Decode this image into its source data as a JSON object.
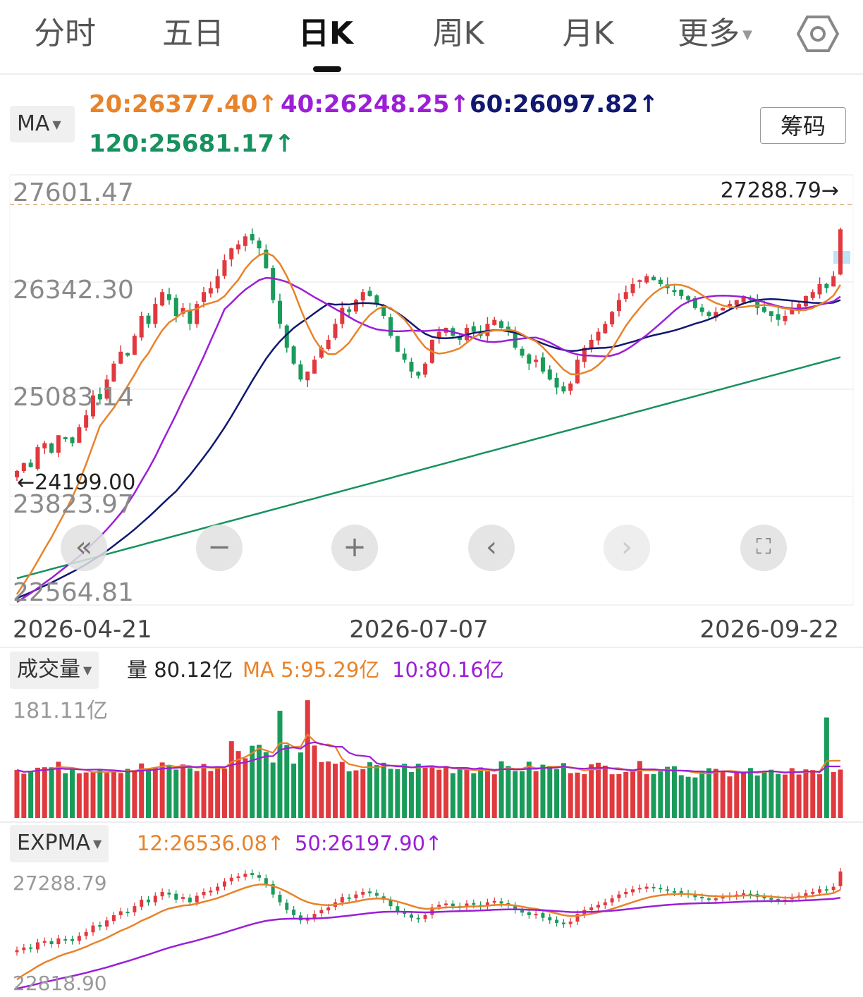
{
  "tabs": [
    {
      "label": "分时"
    },
    {
      "label": "五日"
    },
    {
      "label": "日K",
      "active": true
    },
    {
      "label": "周K"
    },
    {
      "label": "月K"
    },
    {
      "label": "更多"
    }
  ],
  "settings_icon": "gear-icon",
  "ma_panel": {
    "selector_label": "MA",
    "chouma_label": "筹码",
    "lines": [
      {
        "text": "20:26377.40↑",
        "color": "#e8832a"
      },
      {
        "text": "40:26248.25↑",
        "color": "#9b1fd6"
      },
      {
        "text": "60:26097.82↑",
        "color": "#101870"
      },
      {
        "text": "120:25681.17↑",
        "color": "#17915e"
      }
    ],
    "price_labels": [
      "27601.47",
      "26342.30",
      "25083.14",
      "23823.97",
      "22564.81"
    ],
    "max_marker": "27288.79→",
    "min_marker": "←24199.00",
    "dates": [
      "2026-04-21",
      "2026-07-07",
      "2026-09-22"
    ]
  },
  "controls": [
    {
      "name": "zoom-out-fast-button",
      "glyph": "«",
      "enabled": true
    },
    {
      "name": "zoom-out-button",
      "glyph": "−",
      "enabled": true
    },
    {
      "name": "zoom-in-button",
      "glyph": "+",
      "enabled": true
    },
    {
      "name": "scroll-left-button",
      "glyph": "‹",
      "enabled": true
    },
    {
      "name": "scroll-right-button",
      "glyph": "›",
      "enabled": false
    },
    {
      "name": "fullscreen-button",
      "glyph": "⛶",
      "enabled": true
    }
  ],
  "volume_panel": {
    "selector_label": "成交量",
    "volume": "量 80.12亿",
    "ma5": "MA 5:95.29亿",
    "ma10": "10:80.16亿",
    "max_label": "181.11亿"
  },
  "expma_panel": {
    "selector_label": "EXPMA",
    "ema12": "12:26536.08↑",
    "ema50": "50:26197.90↑",
    "top_label": "27288.79",
    "bottom_label": "22818.90"
  },
  "colors": {
    "up": "#e0393e",
    "down": "#199b5a",
    "ma20": "#e8832a",
    "ma40": "#9b1fd6",
    "ma60": "#101870",
    "ma120": "#17915e"
  },
  "chart_data": {
    "type": "candlestick",
    "x_range": [
      "2026-04-21",
      "2026-09-22"
    ],
    "y_range": [
      22564.81,
      27601.47
    ],
    "series": [
      {
        "name": "MA20",
        "value": 26377.4
      },
      {
        "name": "MA40",
        "value": 26248.25
      },
      {
        "name": "MA60",
        "value": 26097.82
      },
      {
        "name": "MA120",
        "value": 25681.17
      }
    ],
    "closes": [
      24250,
      24350,
      24300,
      24550,
      24600,
      24480,
      24700,
      24650,
      24600,
      24800,
      24950,
      25200,
      25150,
      25400,
      25600,
      25750,
      25700,
      25950,
      26200,
      26100,
      26350,
      26500,
      26400,
      26200,
      26300,
      26100,
      26350,
      26500,
      26550,
      26700,
      26900,
      27050,
      27100,
      27200,
      27150,
      27050,
      26800,
      26400,
      26100,
      25800,
      25600,
      25400,
      25500,
      25650,
      25800,
      25900,
      26100,
      26300,
      26250,
      26400,
      26500,
      26450,
      26350,
      26200,
      25950,
      25750,
      25650,
      25500,
      25450,
      25600,
      25900,
      26000,
      26050,
      25950,
      25900,
      26050,
      26000,
      25950,
      26100,
      26150,
      26050,
      26000,
      25800,
      25700,
      25600,
      25650,
      25500,
      25400,
      25300,
      25250,
      25350,
      25650,
      25800,
      25900,
      26000,
      26100,
      26250,
      26400,
      26500,
      26600,
      26650,
      26700,
      26650,
      26600,
      26550,
      26500,
      26450,
      26400,
      26300,
      26250,
      26200,
      26250,
      26300,
      26350,
      26400,
      26450,
      26400,
      26300,
      26250,
      26200,
      26150,
      26200,
      26300,
      26350,
      26450,
      26500,
      26600,
      26550,
      26700,
      27288.79
    ],
    "volume_max": 181.11,
    "volume_ma5": 95.29,
    "volume_ma10": 80.16,
    "latest_volume": 80.12
  }
}
